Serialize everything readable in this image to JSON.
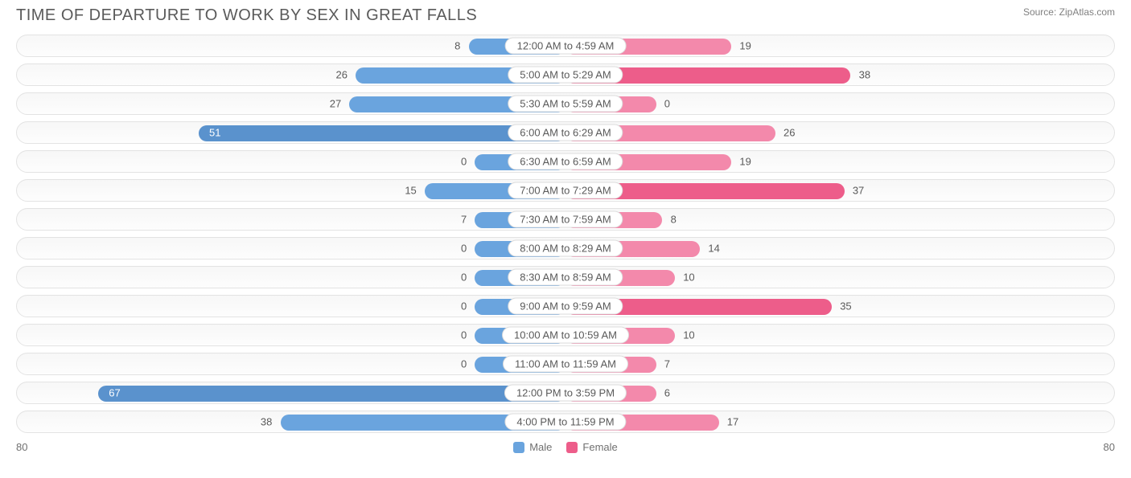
{
  "chart": {
    "title": "TIME OF DEPARTURE TO WORK BY SEX IN GREAT FALLS",
    "source": "Source: ZipAtlas.com",
    "axis_max": 80,
    "axis_left_label": "80",
    "axis_right_label": "80",
    "center_label_offset_pct": 8.5,
    "colors": {
      "male": "#6aa4de",
      "male_highlight": "#5a92cd",
      "female": "#f389ab",
      "female_highlight": "#ed5d8a",
      "row_border": "#e3e3e3",
      "text": "#5a5a5a",
      "background": "#ffffff"
    },
    "legend": [
      {
        "label": "Male",
        "color": "#6aa4de"
      },
      {
        "label": "Female",
        "color": "#ed5d8a"
      }
    ],
    "rows": [
      {
        "category": "12:00 AM to 4:59 AM",
        "male": 8,
        "female": 19,
        "male_highlight": false,
        "female_highlight": false
      },
      {
        "category": "5:00 AM to 5:29 AM",
        "male": 26,
        "female": 38,
        "male_highlight": false,
        "female_highlight": true
      },
      {
        "category": "5:30 AM to 5:59 AM",
        "male": 27,
        "female": 0,
        "male_highlight": false,
        "female_highlight": false
      },
      {
        "category": "6:00 AM to 6:29 AM",
        "male": 51,
        "female": 26,
        "male_highlight": true,
        "female_highlight": false
      },
      {
        "category": "6:30 AM to 6:59 AM",
        "male": 0,
        "female": 19,
        "male_highlight": false,
        "female_highlight": false
      },
      {
        "category": "7:00 AM to 7:29 AM",
        "male": 15,
        "female": 37,
        "male_highlight": false,
        "female_highlight": true
      },
      {
        "category": "7:30 AM to 7:59 AM",
        "male": 7,
        "female": 8,
        "male_highlight": false,
        "female_highlight": false
      },
      {
        "category": "8:00 AM to 8:29 AM",
        "male": 0,
        "female": 14,
        "male_highlight": false,
        "female_highlight": false
      },
      {
        "category": "8:30 AM to 8:59 AM",
        "male": 0,
        "female": 10,
        "male_highlight": false,
        "female_highlight": false
      },
      {
        "category": "9:00 AM to 9:59 AM",
        "male": 0,
        "female": 35,
        "male_highlight": false,
        "female_highlight": true
      },
      {
        "category": "10:00 AM to 10:59 AM",
        "male": 0,
        "female": 10,
        "male_highlight": false,
        "female_highlight": false
      },
      {
        "category": "11:00 AM to 11:59 AM",
        "male": 0,
        "female": 7,
        "male_highlight": false,
        "female_highlight": false
      },
      {
        "category": "12:00 PM to 3:59 PM",
        "male": 67,
        "female": 6,
        "male_highlight": true,
        "female_highlight": false
      },
      {
        "category": "4:00 PM to 11:59 PM",
        "male": 38,
        "female": 17,
        "male_highlight": false,
        "female_highlight": false
      }
    ]
  }
}
